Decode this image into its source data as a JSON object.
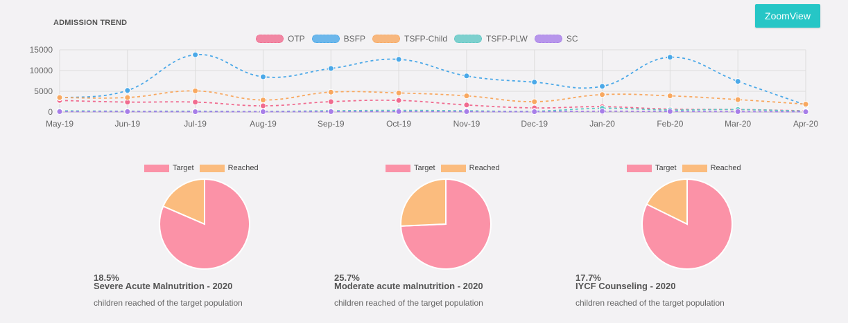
{
  "header": {
    "section_title": "ADMISSION TREND",
    "zoom_button_label": "ZoomView"
  },
  "chart_data": [
    {
      "type": "line",
      "x": [
        "May-19",
        "Jun-19",
        "Jul-19",
        "Aug-19",
        "Sep-19",
        "Oct-19",
        "Nov-19",
        "Dec-19",
        "Jan-20",
        "Feb-20",
        "Mar-20",
        "Apr-20"
      ],
      "ylim": [
        0,
        15000
      ],
      "yticks": [
        0,
        5000,
        10000,
        15000
      ],
      "legend": "top-center",
      "grid": true,
      "series": [
        {
          "name": "OTP",
          "color": "#f06b8f",
          "values": [
            2800,
            2400,
            2400,
            1500,
            2500,
            2800,
            1700,
            1000,
            1300,
            700,
            600,
            300
          ]
        },
        {
          "name": "BSFP",
          "color": "#4aa8e8",
          "values": [
            3400,
            5200,
            13800,
            8500,
            10500,
            12700,
            8700,
            7200,
            6200,
            13200,
            7400,
            1700
          ]
        },
        {
          "name": "TSFP-Child",
          "color": "#f8a860",
          "values": [
            3500,
            3500,
            5100,
            2900,
            4800,
            4600,
            3900,
            2500,
            4200,
            3900,
            3000,
            1900
          ]
        },
        {
          "name": "TSFP-PLW",
          "color": "#5fc7c4",
          "values": [
            300,
            200,
            200,
            150,
            300,
            400,
            300,
            200,
            900,
            500,
            600,
            200
          ]
        },
        {
          "name": "SC",
          "color": "#a77ee8",
          "values": [
            100,
            100,
            80,
            80,
            100,
            120,
            100,
            80,
            200,
            150,
            100,
            60
          ]
        }
      ]
    },
    {
      "type": "pie",
      "labels": [
        "Target",
        "Reached"
      ],
      "colors": [
        "#fb92a7",
        "#fbbc7e"
      ],
      "values": [
        81.5,
        18.5
      ],
      "percent_text": "18.5%",
      "title": "Severe Acute Malnutrition - 2020",
      "subtitle": "children reached of the target population"
    },
    {
      "type": "pie",
      "labels": [
        "Target",
        "Reached"
      ],
      "colors": [
        "#fb92a7",
        "#fbbc7e"
      ],
      "values": [
        74.3,
        25.7
      ],
      "percent_text": "25.7%",
      "title": "Moderate acute malnutrition - 2020",
      "subtitle": "children reached of the target population"
    },
    {
      "type": "pie",
      "labels": [
        "Target",
        "Reached"
      ],
      "colors": [
        "#fb92a7",
        "#fbbc7e"
      ],
      "values": [
        82.3,
        17.7
      ],
      "percent_text": "17.7%",
      "title": "IYCF Counseling - 2020",
      "subtitle": "children reached of the target population"
    }
  ]
}
